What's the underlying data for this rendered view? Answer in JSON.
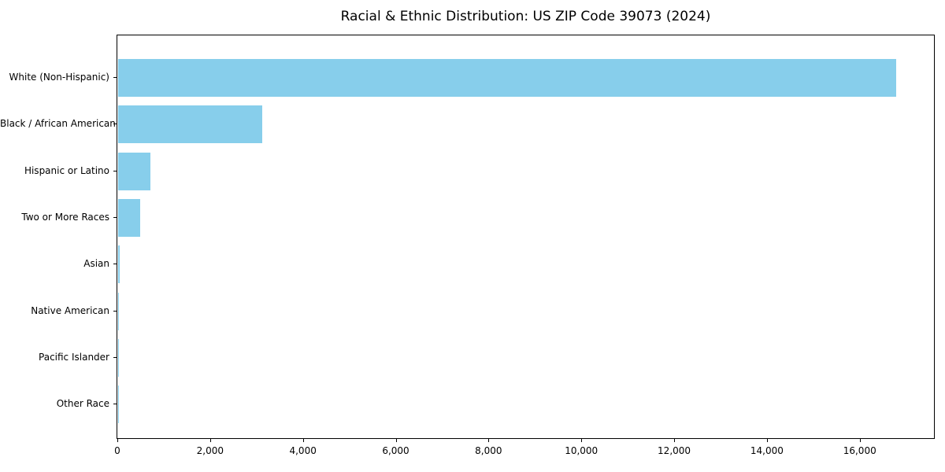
{
  "chart_data": {
    "type": "bar",
    "orientation": "horizontal",
    "title": "Racial & Ethnic Distribution: US ZIP Code 39073 (2024)",
    "categories": [
      "White (Non-Hispanic)",
      "Black / African American",
      "Hispanic or Latino",
      "Two or More Races",
      "Asian",
      "Native American",
      "Pacific Islander",
      "Other Race"
    ],
    "values": [
      16770,
      3100,
      700,
      480,
      30,
      15,
      5,
      5
    ],
    "xlabel": "",
    "ylabel": "",
    "xlim": [
      0,
      17600
    ],
    "x_ticks": [
      0,
      2000,
      4000,
      6000,
      8000,
      10000,
      12000,
      14000,
      16000
    ],
    "x_tick_labels": [
      "0",
      "2,000",
      "4,000",
      "6,000",
      "8,000",
      "10,000",
      "12,000",
      "14,000",
      "16,000"
    ],
    "bar_color": "#87CEEB",
    "background_color": "#FFFFFF",
    "spine_color": "#000000",
    "grid": false,
    "legend": false
  }
}
